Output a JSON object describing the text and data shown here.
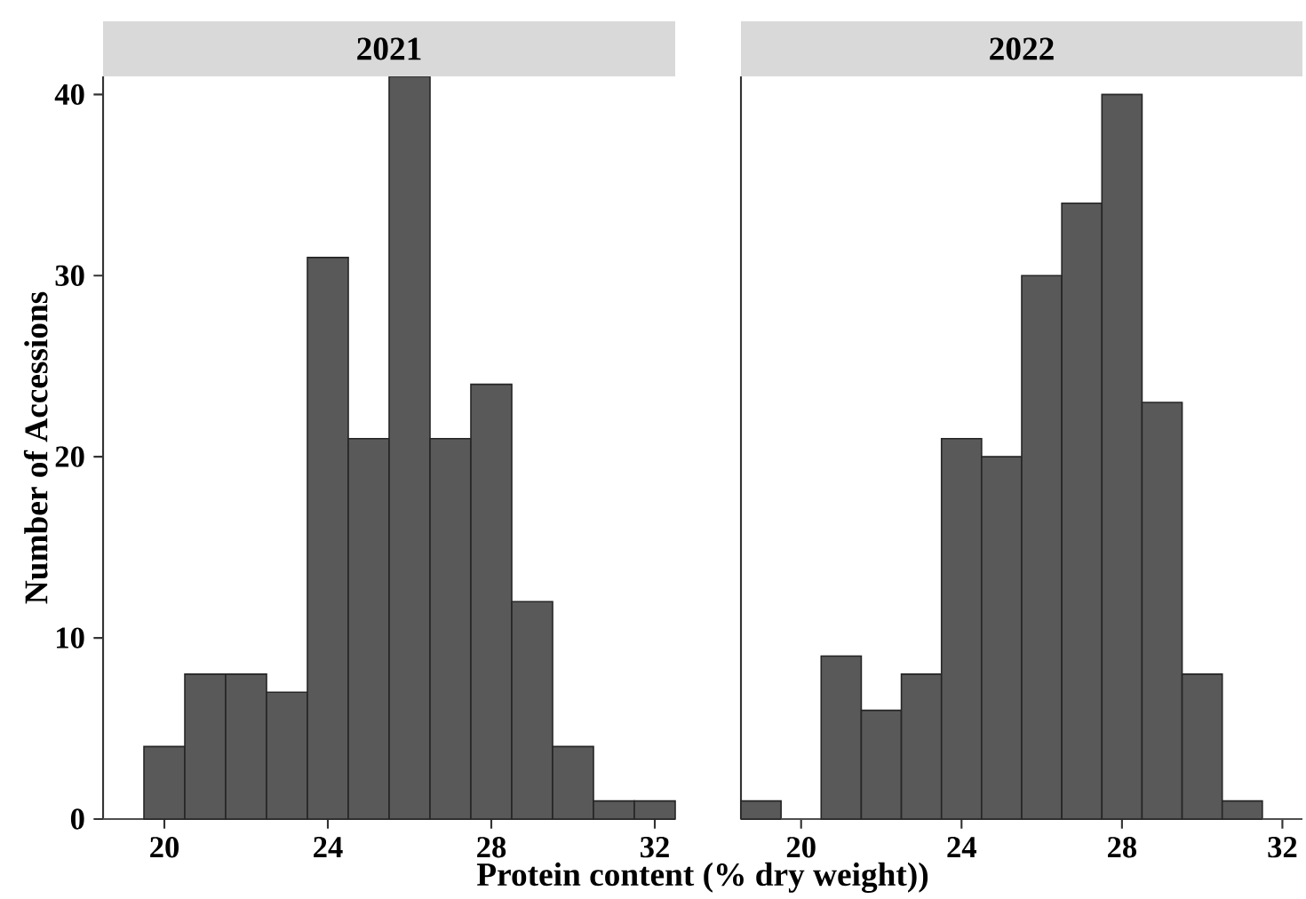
{
  "chart_data": [
    {
      "type": "histogram",
      "title": "2021",
      "xlabel": "Protein content (% dry weight))",
      "ylabel": "Number of Accessions",
      "color": "#595959",
      "bins": [
        18.5,
        19.5,
        20.5,
        21.5,
        22.5,
        23.5,
        24.5,
        25.5,
        26.5,
        27.5,
        28.5,
        29.5,
        30.5,
        31.5,
        32.5
      ],
      "values": [
        0,
        4,
        8,
        8,
        7,
        31,
        21,
        41,
        21,
        24,
        12,
        4,
        1,
        1
      ],
      "xlim": [
        18.5,
        32.5
      ],
      "ylim": [
        0,
        41
      ],
      "xticks": [
        20,
        24,
        28,
        32
      ],
      "yticks": [
        0,
        10,
        20,
        30,
        40
      ]
    },
    {
      "type": "histogram",
      "title": "2022",
      "color": "#595959",
      "bins": [
        18.5,
        19.5,
        20.5,
        21.5,
        22.5,
        23.5,
        24.5,
        25.5,
        26.5,
        27.5,
        28.5,
        29.5,
        30.5,
        31.5,
        32.5
      ],
      "values": [
        1,
        0,
        9,
        6,
        8,
        21,
        20,
        30,
        34,
        40,
        23,
        8,
        1,
        0
      ],
      "xlim": [
        18.5,
        32.5
      ],
      "ylim": [
        0,
        41
      ],
      "xticks": [
        20,
        24,
        28,
        32
      ],
      "yticks": [
        0,
        10,
        20,
        30,
        40
      ],
      "tick_labels": "x"
    }
  ]
}
